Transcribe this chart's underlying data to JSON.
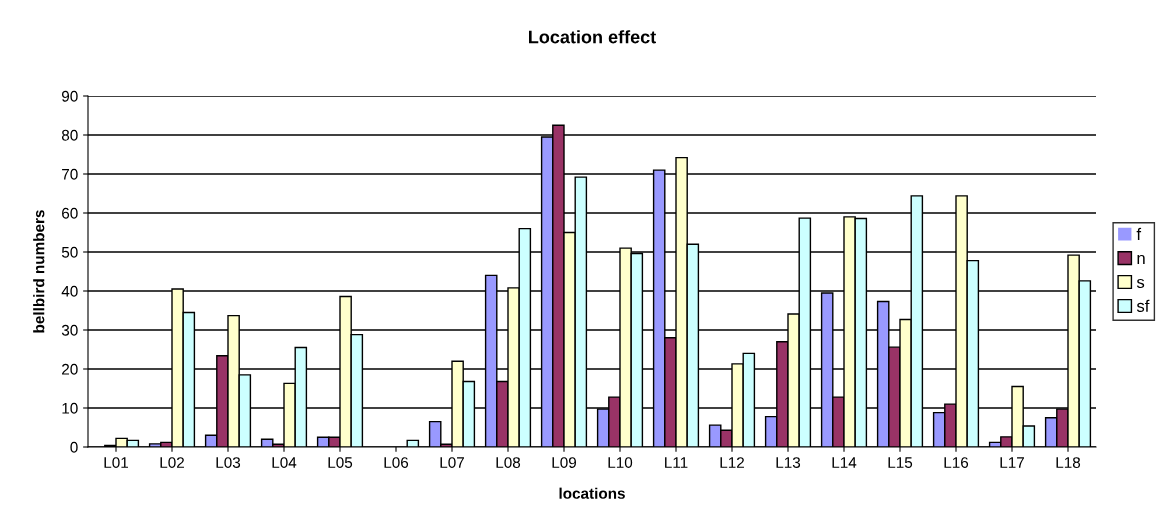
{
  "chart_data": {
    "type": "bar",
    "title": "Location effect",
    "xlabel": "locations",
    "ylabel": "bellbird numbers",
    "categories": [
      "L01",
      "L02",
      "L03",
      "L04",
      "L05",
      "L06",
      "L07",
      "L08",
      "L09",
      "L10",
      "L11",
      "L12",
      "L13",
      "L14",
      "L15",
      "L16",
      "L17",
      "L18"
    ],
    "series": [
      {
        "name": "f",
        "color": "#9999ff",
        "values": [
          0,
          0.8,
          3,
          2,
          2.5,
          0,
          6.5,
          44,
          79.5,
          9.7,
          71,
          5.6,
          7.8,
          39.5,
          37.3,
          8.8,
          1.2,
          7.5
        ]
      },
      {
        "name": "n",
        "color": "#993366",
        "values": [
          0.4,
          1.2,
          23.4,
          0.7,
          2.5,
          0,
          0.7,
          16.8,
          82.5,
          12.8,
          28,
          4.3,
          27,
          12.8,
          25.6,
          11,
          2.6,
          9.7
        ]
      },
      {
        "name": "s",
        "color": "#ffffcc",
        "values": [
          2.2,
          40.5,
          33.7,
          16.3,
          38.6,
          0,
          22,
          40.8,
          55,
          51,
          74.2,
          21.3,
          34.1,
          59,
          32.7,
          64.4,
          15.5,
          49.2
        ]
      },
      {
        "name": "sf",
        "color": "#ccffff",
        "values": [
          1.7,
          34.5,
          18.5,
          25.5,
          28.8,
          1.7,
          16.8,
          56,
          69.2,
          49.6,
          52,
          24,
          58.7,
          58.6,
          64.4,
          47.8,
          5.4,
          42.6
        ]
      }
    ],
    "ylim": [
      0,
      90
    ],
    "yticks": [
      0,
      10,
      20,
      30,
      40,
      50,
      60,
      70,
      80,
      90
    ],
    "grid": "y",
    "legend": "right"
  }
}
